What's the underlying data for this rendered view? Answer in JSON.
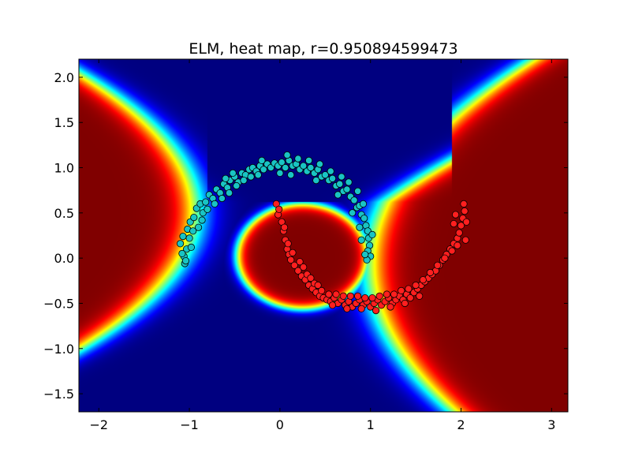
{
  "chart_data": {
    "type": "heatmap",
    "title": "ELM, heat map, r=0.950894599473",
    "xlabel": "",
    "ylabel": "",
    "xlim": [
      -2.22,
      3.18
    ],
    "ylim": [
      -1.7,
      2.2
    ],
    "x_ticks": [
      -2,
      -1,
      0,
      1,
      2,
      3
    ],
    "x_tick_labels": [
      "−2",
      "−1",
      "0",
      "1",
      "2",
      "3"
    ],
    "y_ticks": [
      -1.5,
      -1.0,
      -0.5,
      0.0,
      0.5,
      1.0,
      1.5,
      2.0
    ],
    "y_tick_labels": [
      "−1.5",
      "−1.0",
      "−0.5",
      "0.0",
      "0.5",
      "1.0",
      "1.5",
      "2.0"
    ],
    "grid": false,
    "colormap": "jet",
    "colors": {
      "class_a": "#19c4c4",
      "class_b": "#ff1f1f",
      "marker_edge": "#000000",
      "heat_low": "#00007f",
      "heat_high": "#7f0000"
    },
    "series": [
      {
        "class": "class_a",
        "points": [
          [
            -1.07,
            0.24
          ],
          [
            -1.05,
            -0.06
          ],
          [
            -1.06,
            0.02
          ],
          [
            -1.03,
            0.1
          ],
          [
            -1.1,
            0.16
          ],
          [
            -1.02,
            0.32
          ],
          [
            -0.99,
            0.4
          ],
          [
            -0.96,
            0.3
          ],
          [
            -1.0,
            0.22
          ],
          [
            -1.08,
            0.05
          ],
          [
            -0.95,
            0.45
          ],
          [
            -0.92,
            0.55
          ],
          [
            -0.88,
            0.6
          ],
          [
            -0.85,
            0.5
          ],
          [
            -0.82,
            0.62
          ],
          [
            -0.78,
            0.7
          ],
          [
            -0.74,
            0.66
          ],
          [
            -0.7,
            0.76
          ],
          [
            -0.66,
            0.72
          ],
          [
            -0.62,
            0.82
          ],
          [
            -0.58,
            0.78
          ],
          [
            -0.55,
            0.86
          ],
          [
            -0.5,
            0.9
          ],
          [
            -0.46,
            0.84
          ],
          [
            -0.42,
            0.94
          ],
          [
            -0.38,
            0.92
          ],
          [
            -0.34,
            0.98
          ],
          [
            -0.3,
            1.0
          ],
          [
            -0.26,
            0.96
          ],
          [
            -0.22,
            1.02
          ],
          [
            -0.18,
            0.98
          ],
          [
            -0.14,
            1.04
          ],
          [
            -0.1,
            1.0
          ],
          [
            -0.06,
            1.05
          ],
          [
            -0.02,
            1.02
          ],
          [
            0.02,
            1.06
          ],
          [
            0.06,
            1.0
          ],
          [
            0.1,
            1.08
          ],
          [
            0.14,
            1.02
          ],
          [
            0.18,
            1.04
          ],
          [
            0.22,
            0.98
          ],
          [
            0.26,
            1.02
          ],
          [
            0.3,
            0.96
          ],
          [
            0.34,
            1.0
          ],
          [
            0.38,
            0.94
          ],
          [
            0.42,
            0.98
          ],
          [
            0.46,
            0.9
          ],
          [
            0.5,
            0.92
          ],
          [
            0.54,
            0.86
          ],
          [
            0.58,
            0.88
          ],
          [
            0.62,
            0.8
          ],
          [
            0.66,
            0.82
          ],
          [
            0.7,
            0.74
          ],
          [
            0.74,
            0.76
          ],
          [
            0.78,
            0.68
          ],
          [
            0.82,
            0.64
          ],
          [
            0.85,
            0.56
          ],
          [
            0.88,
            0.58
          ],
          [
            0.9,
            0.48
          ],
          [
            0.93,
            0.44
          ],
          [
            0.95,
            0.36
          ],
          [
            0.97,
            0.3
          ],
          [
            0.98,
            0.22
          ],
          [
            0.99,
            0.14
          ],
          [
            0.97,
            0.08
          ],
          [
            1.0,
            0.02
          ],
          [
            0.96,
            -0.02
          ],
          [
            0.94,
            0.04
          ],
          [
            -1.04,
            -0.03
          ],
          [
            -0.98,
            0.12
          ],
          [
            -0.9,
            0.34
          ],
          [
            -0.86,
            0.42
          ],
          [
            -0.8,
            0.54
          ],
          [
            -0.72,
            0.6
          ],
          [
            -0.64,
            0.66
          ],
          [
            -0.56,
            0.72
          ],
          [
            -0.48,
            0.8
          ],
          [
            -0.4,
            0.86
          ],
          [
            -0.32,
            0.9
          ],
          [
            -0.24,
            0.92
          ],
          [
            0.08,
            1.14
          ],
          [
            0.0,
            0.94
          ],
          [
            0.2,
            1.1
          ],
          [
            0.32,
            1.08
          ],
          [
            0.44,
            1.04
          ],
          [
            0.56,
            0.96
          ],
          [
            0.68,
            0.9
          ],
          [
            0.76,
            0.84
          ],
          [
            0.86,
            0.74
          ],
          [
            0.92,
            0.6
          ],
          [
            -0.6,
            0.88
          ],
          [
            -0.52,
            0.94
          ],
          [
            -0.2,
            1.08
          ],
          [
            0.12,
            0.92
          ],
          [
            0.4,
            0.86
          ],
          [
            0.64,
            0.7
          ],
          [
            0.8,
            0.5
          ],
          [
            0.88,
            0.34
          ],
          [
            1.02,
            0.26
          ],
          [
            0.9,
            0.2
          ]
        ]
      },
      {
        "class": "class_b",
        "points": [
          [
            -0.04,
            0.6
          ],
          [
            -0.02,
            0.48
          ],
          [
            0.02,
            0.4
          ],
          [
            0.04,
            0.3
          ],
          [
            0.06,
            0.2
          ],
          [
            0.08,
            0.1
          ],
          [
            0.1,
            0.04
          ],
          [
            0.12,
            -0.02
          ],
          [
            0.16,
            -0.08
          ],
          [
            0.2,
            -0.14
          ],
          [
            0.24,
            -0.2
          ],
          [
            0.28,
            -0.24
          ],
          [
            0.32,
            -0.3
          ],
          [
            0.36,
            -0.34
          ],
          [
            0.4,
            -0.38
          ],
          [
            0.44,
            -0.42
          ],
          [
            0.48,
            -0.44
          ],
          [
            0.52,
            -0.46
          ],
          [
            0.56,
            -0.48
          ],
          [
            0.6,
            -0.44
          ],
          [
            0.64,
            -0.5
          ],
          [
            0.68,
            -0.46
          ],
          [
            0.72,
            -0.52
          ],
          [
            0.76,
            -0.48
          ],
          [
            0.8,
            -0.54
          ],
          [
            0.84,
            -0.5
          ],
          [
            0.88,
            -0.46
          ],
          [
            0.92,
            -0.52
          ],
          [
            0.96,
            -0.48
          ],
          [
            1.0,
            -0.54
          ],
          [
            1.04,
            -0.5
          ],
          [
            1.08,
            -0.46
          ],
          [
            1.12,
            -0.52
          ],
          [
            1.16,
            -0.48
          ],
          [
            1.2,
            -0.44
          ],
          [
            1.24,
            -0.5
          ],
          [
            1.28,
            -0.46
          ],
          [
            1.32,
            -0.42
          ],
          [
            1.36,
            -0.46
          ],
          [
            1.4,
            -0.4
          ],
          [
            1.44,
            -0.44
          ],
          [
            1.48,
            -0.38
          ],
          [
            1.52,
            -0.34
          ],
          [
            1.56,
            -0.3
          ],
          [
            1.6,
            -0.26
          ],
          [
            1.64,
            -0.22
          ],
          [
            1.68,
            -0.18
          ],
          [
            1.72,
            -0.14
          ],
          [
            1.76,
            -0.08
          ],
          [
            1.8,
            -0.02
          ],
          [
            1.84,
            0.04
          ],
          [
            1.88,
            0.1
          ],
          [
            1.92,
            0.16
          ],
          [
            1.96,
            0.22
          ],
          [
            1.98,
            0.28
          ],
          [
            2.0,
            0.36
          ],
          [
            2.02,
            0.44
          ],
          [
            2.04,
            0.52
          ],
          [
            2.03,
            0.6
          ],
          [
            1.94,
            0.48
          ],
          [
            -0.01,
            0.54
          ],
          [
            0.05,
            0.34
          ],
          [
            0.09,
            0.16
          ],
          [
            0.14,
            0.06
          ],
          [
            0.22,
            -0.04
          ],
          [
            0.3,
            -0.18
          ],
          [
            0.38,
            -0.28
          ],
          [
            0.46,
            -0.36
          ],
          [
            0.54,
            -0.4
          ],
          [
            0.62,
            -0.4
          ],
          [
            0.7,
            -0.42
          ],
          [
            0.78,
            -0.42
          ],
          [
            0.86,
            -0.42
          ],
          [
            0.94,
            -0.44
          ],
          [
            1.02,
            -0.44
          ],
          [
            1.1,
            -0.42
          ],
          [
            1.18,
            -0.4
          ],
          [
            1.26,
            -0.4
          ],
          [
            1.34,
            -0.36
          ],
          [
            1.42,
            -0.34
          ],
          [
            1.5,
            -0.3
          ],
          [
            1.58,
            -0.24
          ],
          [
            1.66,
            -0.16
          ],
          [
            1.74,
            -0.08
          ],
          [
            1.82,
            0.0
          ],
          [
            1.9,
            0.08
          ],
          [
            1.96,
            0.14
          ],
          [
            2.05,
            0.2
          ],
          [
            1.92,
            0.38
          ],
          [
            2.06,
            0.4
          ],
          [
            0.26,
            -0.1
          ],
          [
            0.34,
            -0.22
          ],
          [
            0.42,
            -0.3
          ],
          [
            0.58,
            -0.52
          ],
          [
            0.74,
            -0.56
          ],
          [
            0.9,
            -0.56
          ],
          [
            1.06,
            -0.58
          ],
          [
            1.22,
            -0.54
          ],
          [
            1.38,
            -0.5
          ],
          [
            1.54,
            -0.42
          ]
        ]
      }
    ]
  }
}
